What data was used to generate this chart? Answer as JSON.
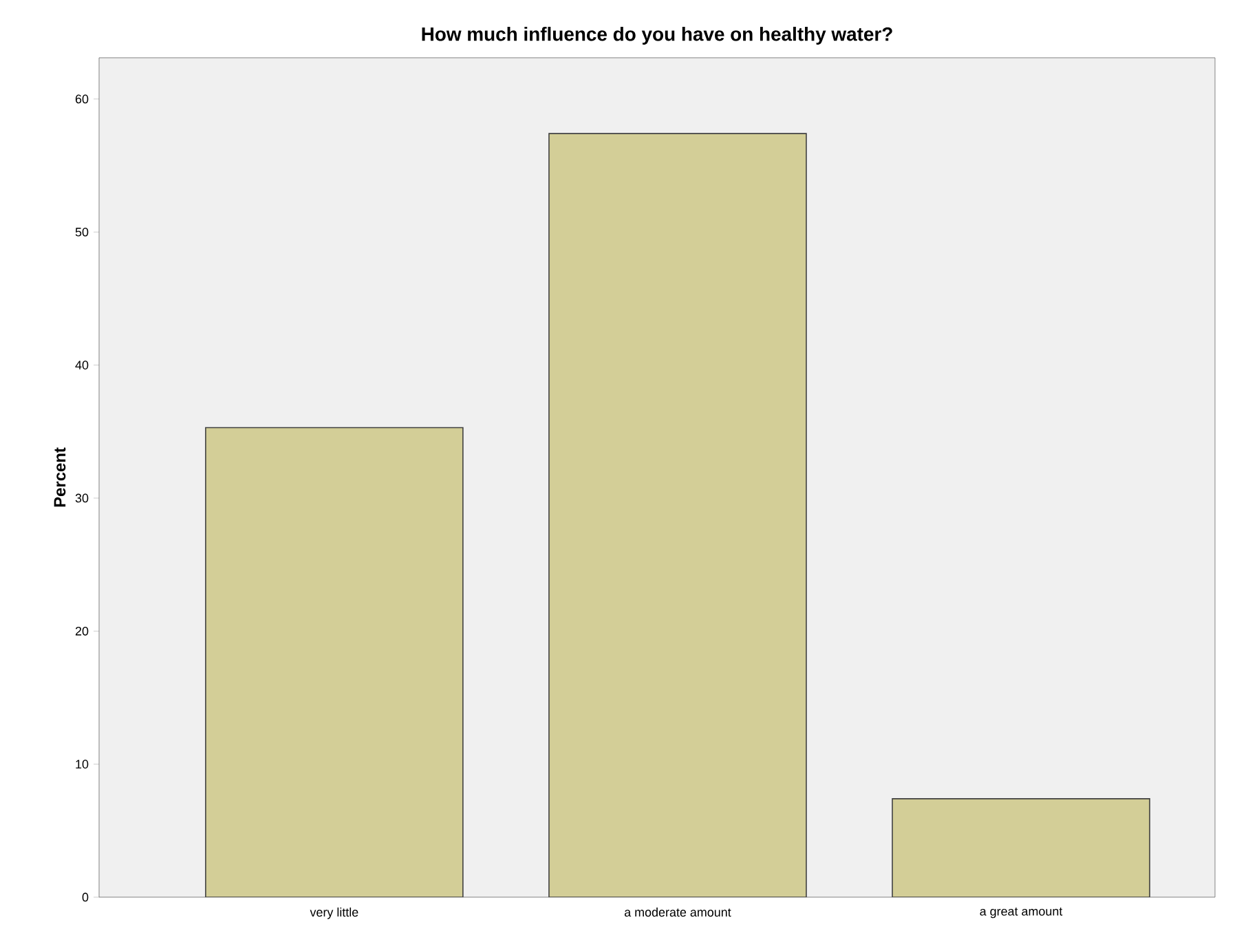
{
  "chart_data": {
    "type": "bar",
    "title": "How much influence do you have on healthy water?",
    "ylabel": "Percent",
    "categories": [
      "very little",
      "a moderate amount",
      "a great amount"
    ],
    "values": [
      35.3,
      57.4,
      7.4
    ],
    "color": "#d3ce97",
    "ylim": [
      0,
      63.1
    ],
    "yticks": [
      0,
      10,
      20,
      30,
      40,
      50,
      60
    ],
    "grid": false
  }
}
